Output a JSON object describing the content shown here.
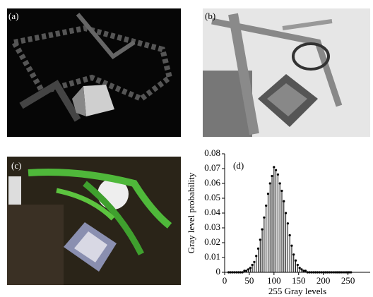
{
  "panels": [
    {
      "label": "(a)"
    },
    {
      "label": "(b)"
    },
    {
      "label": "(c)"
    }
  ],
  "chart_data": {
    "type": "stem",
    "label": "(d)",
    "x_label": "255 Gray levels",
    "y_label": "Gray level probability",
    "color": "#000000",
    "x": [
      8,
      12,
      16,
      20,
      24,
      28,
      32,
      36,
      40,
      44,
      48,
      52,
      56,
      60,
      64,
      68,
      72,
      76,
      80,
      84,
      88,
      92,
      96,
      100,
      104,
      108,
      112,
      116,
      120,
      124,
      128,
      132,
      136,
      140,
      144,
      148,
      152,
      156,
      160,
      164,
      168,
      172,
      176,
      180,
      184,
      188,
      192,
      196,
      200,
      204,
      208,
      212,
      216,
      220,
      224,
      228,
      232,
      236,
      240,
      244,
      248,
      252,
      256
    ],
    "values": [
      0,
      0,
      0,
      0,
      0,
      0,
      0,
      0,
      0.001,
      0.001,
      0.002,
      0.003,
      0.005,
      0.007,
      0.011,
      0.016,
      0.022,
      0.029,
      0.037,
      0.045,
      0.053,
      0.06,
      0.065,
      0.071,
      0.069,
      0.066,
      0.06,
      0.055,
      0.048,
      0.04,
      0.033,
      0.025,
      0.018,
      0.012,
      0.008,
      0.005,
      0.003,
      0.002,
      0.001,
      0.001,
      0,
      0,
      0,
      0,
      0,
      0,
      0,
      0,
      0,
      0,
      0,
      0,
      0,
      0,
      0,
      0,
      0,
      0,
      0,
      0,
      0,
      0,
      0
    ],
    "xlim": [
      0,
      295
    ],
    "ylim": [
      0,
      0.08
    ],
    "xticks": [
      0,
      50,
      100,
      150,
      200,
      250
    ],
    "yticks": [
      0,
      0.01,
      0.02,
      0.03,
      0.04,
      0.05,
      0.06,
      0.07,
      0.08
    ]
  }
}
